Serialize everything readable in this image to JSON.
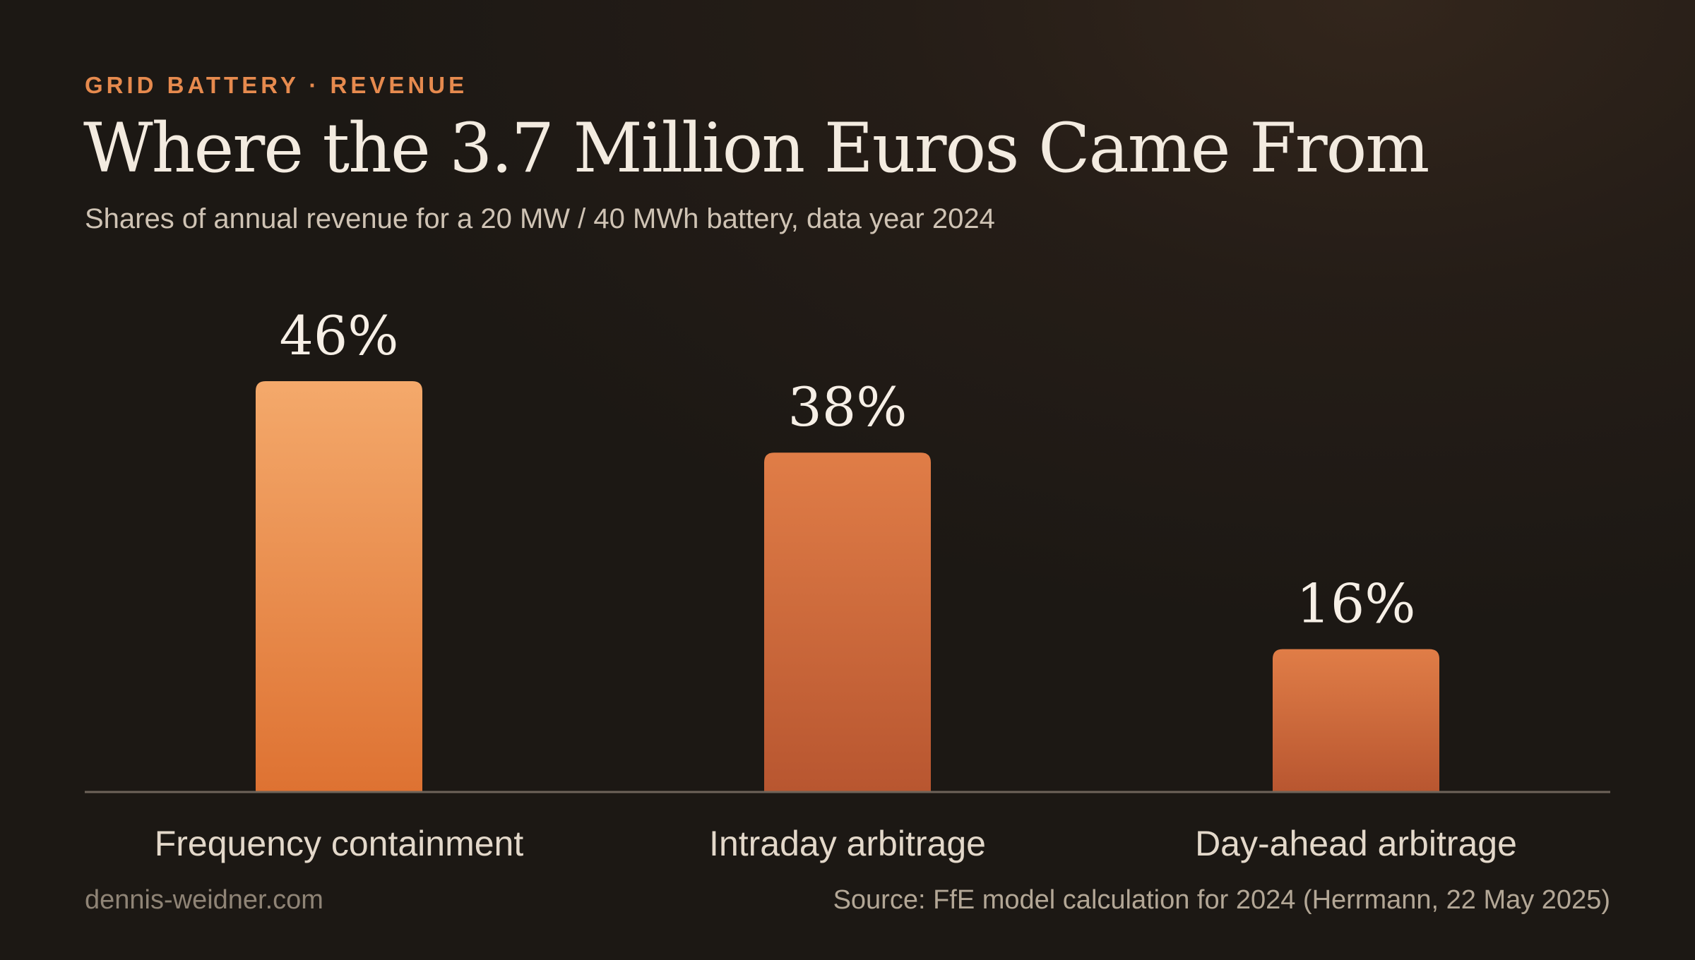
{
  "header": {
    "kicker": "GRID BATTERY · REVENUE",
    "title": "Where the 3.7 Million Euros Came From",
    "subtitle": "Shares of annual revenue for a 20 MW / 40 MWh battery, data year 2024"
  },
  "footer": {
    "site": "dennis-weidner.com",
    "source": "Source: FfE model calculation for 2024 (Herrmann, 22 May 2025)"
  },
  "colors": {
    "accent": "#e68a4e",
    "bar_top_primary": "#f4a96b",
    "bar_bottom_primary": "#de7232",
    "bar_top_secondary": "#e07d47",
    "bar_bottom_secondary": "#b85630",
    "baseline": "#6e645a"
  },
  "chart_data": {
    "type": "bar",
    "categories": [
      "Frequency containment",
      "Intraday arbitrage",
      "Day-ahead arbitrage"
    ],
    "values": [
      46,
      38,
      16
    ],
    "value_labels": [
      "46%",
      "38%",
      "16%"
    ],
    "unit": "%",
    "grid": false,
    "legend": "none"
  }
}
